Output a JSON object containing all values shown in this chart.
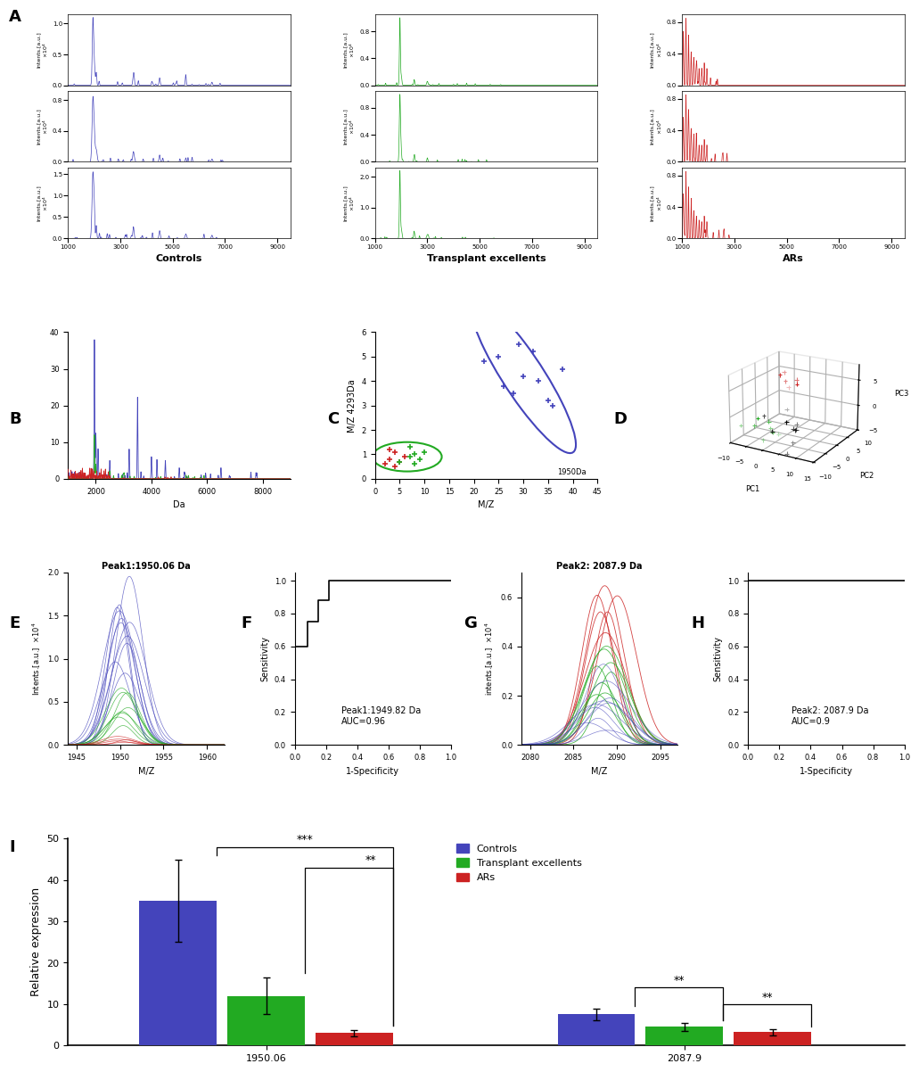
{
  "colors": {
    "blue": "#4444BB",
    "green": "#22AA22",
    "red": "#CC2222"
  },
  "panel_I_groups": [
    "1950.06",
    "2087.9"
  ],
  "panel_I_categories": [
    "Controls",
    "Transplant excellents",
    "ARs"
  ],
  "panel_I_values": {
    "1950.06": {
      "Controls": 35,
      "Transplant excellents": 12,
      "ARs": 3
    },
    "2087.9": {
      "Controls": 7.5,
      "Transplant excellents": 4.5,
      "ARs": 3.2
    }
  },
  "panel_I_errors": {
    "1950.06": {
      "Controls": 10,
      "Transplant excellents": 4.5,
      "ARs": 0.8
    },
    "2087.9": {
      "Controls": 1.5,
      "Transplant excellents": 1.0,
      "ARs": 0.8
    }
  }
}
